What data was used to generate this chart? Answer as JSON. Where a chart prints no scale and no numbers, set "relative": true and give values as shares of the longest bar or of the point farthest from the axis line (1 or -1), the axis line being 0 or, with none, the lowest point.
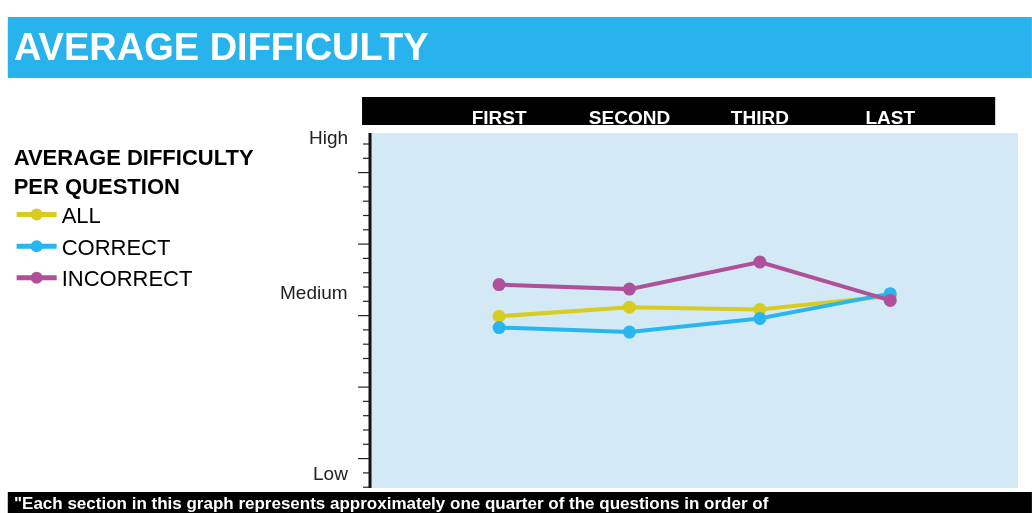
{
  "chart_data": {
    "type": "line",
    "title": "AVERAGE DIFFICULTY",
    "legend_title": "AVERAGE DIFFICULTY PER QUESTION",
    "categories": [
      "FIRST",
      "SECOND",
      "THIRD",
      "LAST"
    ],
    "relative": true,
    "series": [
      {
        "name": "ALL",
        "color": "#d8cc22",
        "values": [
          0.76,
          0.8,
          0.79,
          0.85
        ]
      },
      {
        "name": "CORRECT",
        "color": "#29b6f0",
        "values": [
          0.71,
          0.69,
          0.75,
          0.86
        ]
      },
      {
        "name": "INCORRECT",
        "color": "#b0509a",
        "values": [
          0.9,
          0.88,
          1,
          0.83
        ]
      }
    ],
    "marker": "circle",
    "line_style": "solid",
    "grid": false,
    "legend": "left",
    "annotations": [
      "High",
      "Medium",
      "Low",
      "\"Each section in this graph represents approximately one quarter of the questions in order of"
    ]
  }
}
